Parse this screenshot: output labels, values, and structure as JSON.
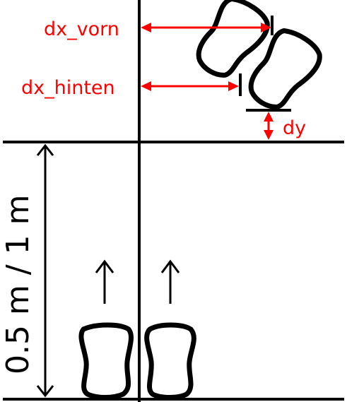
{
  "labels": {
    "dx_front": "dx_vorn",
    "dx_back": "dx_hinten",
    "dy": "dy",
    "distance": "0.5 m / 1 m"
  },
  "colors": {
    "annotation": "#ff0000",
    "lines": "#000000",
    "background": "#ffffff"
  }
}
